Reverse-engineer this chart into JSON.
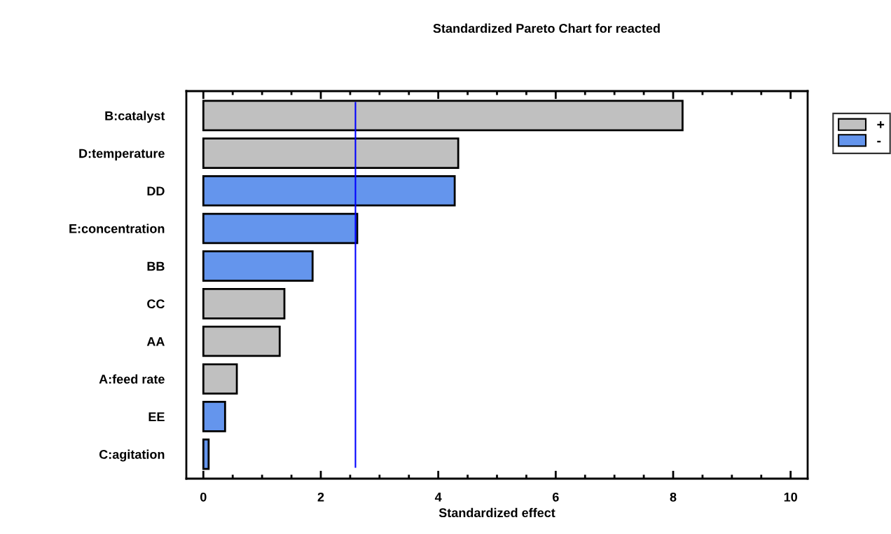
{
  "chart_data": {
    "type": "bar",
    "orientation": "horizontal",
    "title": "Standardized Pareto Chart for reacted",
    "xlabel": "Standardized effect",
    "categories": [
      "B:catalyst",
      "D:temperature",
      "DD",
      "E:concentration",
      "BB",
      "CC",
      "AA",
      "A:feed rate",
      "EE",
      "C:agitation"
    ],
    "series": [
      {
        "name": "+",
        "color": "#c0c0c0",
        "values": [
          8.16,
          4.34,
          null,
          null,
          null,
          1.38,
          1.3,
          0.57,
          null,
          null
        ]
      },
      {
        "name": "-",
        "color": "#6495ed",
        "values": [
          null,
          null,
          4.28,
          2.62,
          1.86,
          null,
          null,
          null,
          0.37,
          0.09
        ]
      }
    ],
    "xlim": [
      -0.29,
      10.29
    ],
    "xticks": [
      0,
      2,
      4,
      6,
      8,
      10
    ],
    "ref_lines": [
      {
        "axis": "x",
        "value": 2.59,
        "color": "#0000ff"
      }
    ],
    "legend": "right",
    "grid": false
  }
}
